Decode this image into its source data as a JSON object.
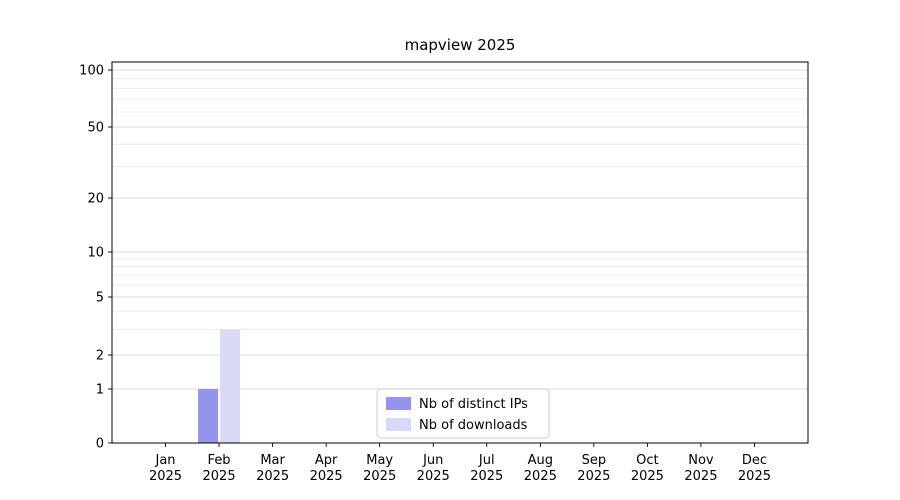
{
  "chart_data": {
    "type": "bar",
    "title": "mapview 2025",
    "categories": [
      "Jan 2025",
      "Feb 2025",
      "Mar 2025",
      "Apr 2025",
      "May 2025",
      "Jun 2025",
      "Jul 2025",
      "Aug 2025",
      "Sep 2025",
      "Oct 2025",
      "Nov 2025",
      "Dec 2025"
    ],
    "series": [
      {
        "name": "Nb of distinct IPs",
        "color": "#9494ec",
        "values": [
          0,
          1,
          0,
          0,
          0,
          0,
          0,
          0,
          0,
          0,
          0,
          0
        ]
      },
      {
        "name": "Nb of downloads",
        "color": "#d9d9f8",
        "values": [
          0,
          3,
          0,
          0,
          0,
          0,
          0,
          0,
          0,
          0,
          0,
          0
        ]
      }
    ],
    "yscale": "symlog",
    "yticks": [
      0,
      1,
      2,
      5,
      10,
      20,
      50,
      100
    ],
    "minor_yticks": [
      3,
      4,
      6,
      7,
      8,
      9,
      30,
      40,
      60,
      70,
      80,
      90
    ],
    "ylim": [
      0,
      110
    ],
    "grid": true,
    "legend_position": "lower center",
    "legend": [
      "Nb of distinct IPs",
      "Nb of downloads"
    ],
    "colors": {
      "grid_major": "#dcdcdc",
      "grid_minor": "#ececec",
      "spine": "#000000",
      "legend_border": "#cccccc",
      "legend_background": "#ffffff"
    }
  }
}
